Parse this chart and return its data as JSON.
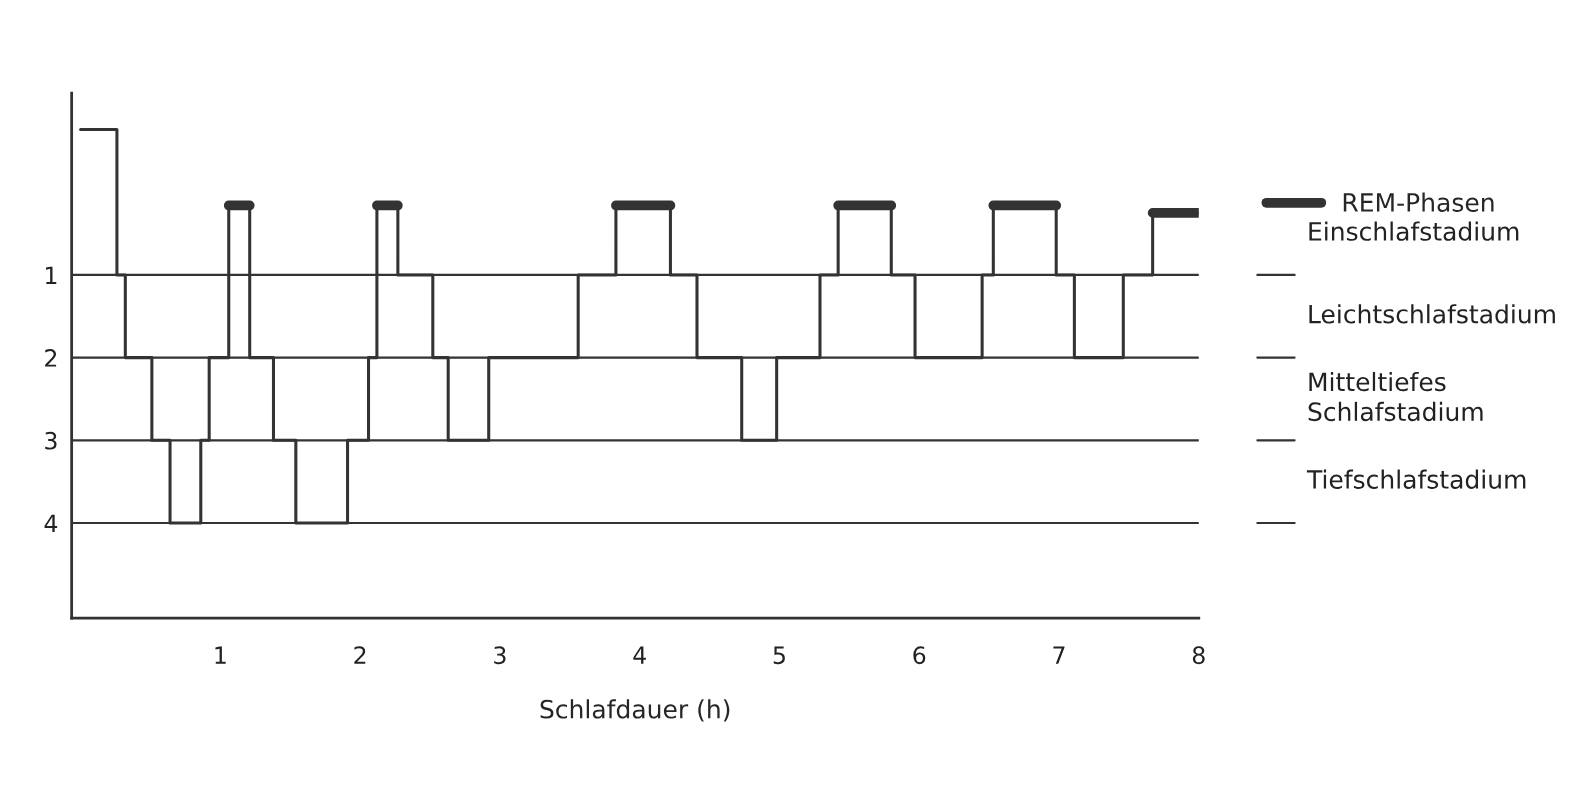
{
  "chart_data": {
    "type": "step",
    "xlabel": "Schlafdauer (h)",
    "xlim": [
      -0.064,
      8
    ],
    "xticks": [
      1,
      2,
      3,
      4,
      5,
      6,
      7,
      8
    ],
    "ylim": [
      5.15,
      -1.2
    ],
    "yticks": [
      1,
      2,
      3,
      4
    ],
    "grid": "y",
    "legend": "right",
    "annotations": [
      "Einschlafstadium",
      "Leichtschlafstadium",
      "Mitteltiefes\nSchlafstadium",
      "Tiefschlafstadium"
    ],
    "series": [
      {
        "color": "#333333",
        "line_style": "solid",
        "x": [
          0,
          0.26,
          0.32,
          0.51,
          0.64,
          0.86,
          0.92,
          1.06,
          1.21,
          1.38,
          1.54,
          1.91,
          2.06,
          2.12,
          2.27,
          2.52,
          2.63,
          2.92,
          3.56,
          3.83,
          4.22,
          4.41,
          4.73,
          4.98,
          5.29,
          5.42,
          5.8,
          5.97,
          6.45,
          6.53,
          6.98,
          7.11,
          7.46,
          7.67,
          8
        ],
        "values": [
          -0.76,
          1,
          2,
          3,
          4,
          3,
          2,
          0.16,
          2,
          3,
          4,
          3,
          2,
          0.16,
          1,
          2,
          3,
          2,
          1,
          0.16,
          1,
          2,
          3,
          2,
          1,
          0.16,
          1,
          2,
          1,
          0.16,
          1,
          2,
          1,
          0.25,
          0.25
        ]
      },
      {
        "name": "REM-Phasen",
        "color": "#333333",
        "line_style": "solid",
        "x": [
          1.06,
          1.21,
          2.12,
          2.27,
          3.83,
          4.22,
          5.42,
          5.8,
          6.53,
          6.98,
          7.67,
          8
        ],
        "values": [
          0.16,
          null,
          0.16,
          null,
          0.16,
          null,
          0.16,
          null,
          0.16,
          null,
          0.25,
          0.25
        ]
      }
    ]
  }
}
